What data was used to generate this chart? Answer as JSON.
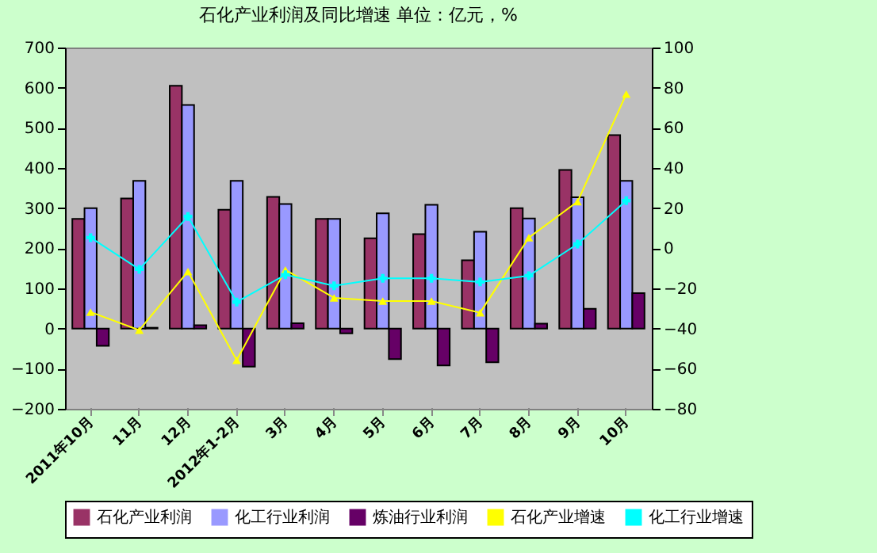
{
  "chart_data": {
    "type": "bar",
    "title": "石化产业利润及同比增速  单位：亿元，%",
    "categories": [
      "2011年10月",
      "11月",
      "12月",
      "2012年1-2月",
      "3月",
      "4月",
      "5月",
      "6月",
      "7月",
      "8月",
      "9月",
      "10月"
    ],
    "series": [
      {
        "name": "石化产业利润",
        "color": "#993366",
        "values": [
          273,
          324,
          605,
          296,
          328,
          273,
          225,
          235,
          170,
          300,
          395,
          482
        ]
      },
      {
        "name": "化工行业利润",
        "color": "#9999ff",
        "values": [
          300,
          368,
          557,
          368,
          310,
          273,
          287,
          308,
          241,
          274,
          327,
          368
        ]
      },
      {
        "name": "炼油行业利润",
        "color": "#660066",
        "values": [
          -43,
          2,
          8,
          -95,
          13,
          -12,
          -76,
          -92,
          -84,
          12,
          49,
          88
        ]
      },
      {
        "name": "石化产业增速",
        "type": "line",
        "axis": "y2",
        "marker": "triangle",
        "color": "#ffff00",
        "values": [
          -31.8,
          -40.8,
          -11.6,
          -55.8,
          -10.8,
          -24.7,
          -26.3,
          -26.3,
          -32.1,
          5.3,
          23.2,
          76.8
        ]
      },
      {
        "name": "化工行业增速",
        "type": "line",
        "axis": "y2",
        "marker": "cross",
        "color": "#00ffff",
        "values": [
          5.3,
          -10.5,
          15.8,
          -26.8,
          -13.2,
          -18.7,
          -15,
          -15,
          -16.8,
          -13.7,
          2.1,
          23.7
        ]
      }
    ],
    "ylim": [
      -200,
      700
    ],
    "yticks": [
      -200,
      -100,
      0,
      100,
      200,
      300,
      400,
      500,
      600,
      700
    ],
    "y2lim": [
      -80,
      100
    ],
    "y2ticks": [
      -80,
      -60,
      -40,
      -20,
      0,
      20,
      40,
      60,
      80,
      100
    ],
    "legend": "bottom",
    "grid": false
  }
}
